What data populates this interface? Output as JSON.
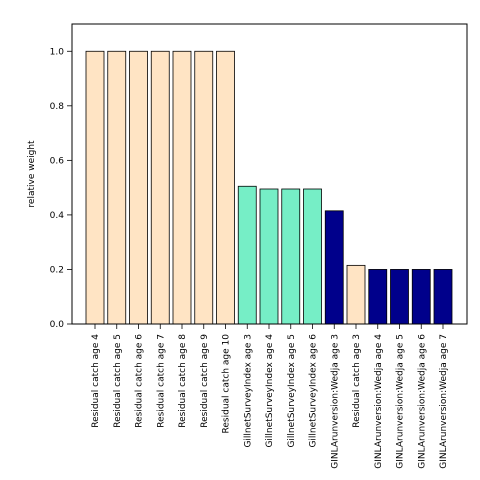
{
  "chart_data": {
    "type": "bar",
    "title": "",
    "xlabel": "",
    "ylabel": "relative weight",
    "ylim": [
      0,
      1.1
    ],
    "yticks": [
      "0.0",
      "0.2",
      "0.4",
      "0.6",
      "0.8",
      "1.0"
    ],
    "grid": false,
    "categories": [
      "Residual catch age 4",
      "Residual catch age 5",
      "Residual catch age 6",
      "Residual catch age 7",
      "Residual catch age 8",
      "Residual catch age 9",
      "Residual catch age 10",
      "GillnetSurveyIndex age 3",
      "GillnetSurveyIndex age 4",
      "GillnetSurveyIndex age 5",
      "GillnetSurveyIndex age 6",
      "GINLArunversion:Wedja age 3",
      "Residual catch age 3",
      "GINLArunversion:Wedja age 4",
      "GINLArunversion:Wedja age 5",
      "GINLArunversion:Wedja age 6",
      "GINLArunversion:Wedja age 7"
    ],
    "values": [
      1.0,
      1.0,
      1.0,
      1.0,
      1.0,
      1.0,
      1.0,
      0.505,
      0.495,
      0.495,
      0.495,
      0.415,
      0.215,
      0.2,
      0.2,
      0.2,
      0.2
    ],
    "colors": [
      "#FFE4C4",
      "#FFE4C4",
      "#FFE4C4",
      "#FFE4C4",
      "#FFE4C4",
      "#FFE4C4",
      "#FFE4C4",
      "#76EEC6",
      "#76EEC6",
      "#76EEC6",
      "#76EEC6",
      "#00008B",
      "#FFE4C4",
      "#00008B",
      "#00008B",
      "#00008B",
      "#00008B"
    ]
  }
}
